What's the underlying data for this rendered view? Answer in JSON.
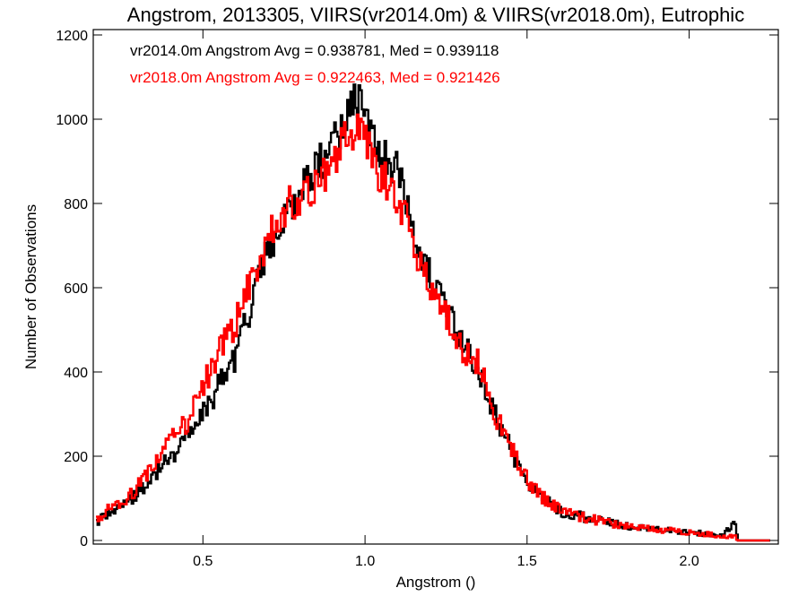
{
  "chart_data": {
    "type": "histogram-step",
    "title": "Angstrom, 2013305, VIIRS(vr2014.0m) & VIIRS(vr2018.0m), Eutrophic",
    "xlabel": "Angstrom ()",
    "ylabel": "Number of Observations",
    "xlim": [
      0.17,
      2.25
    ],
    "ylim": [
      0,
      1200
    ],
    "xticks": [
      0.5,
      1.0,
      1.5,
      2.0
    ],
    "xtick_labels": [
      "0.5",
      "1.0",
      "1.5",
      "2.0"
    ],
    "yticks": [
      0,
      200,
      400,
      600,
      800,
      1000,
      1200
    ],
    "ytick_labels": [
      "0",
      "200",
      "400",
      "600",
      "800",
      "1000",
      "1200"
    ],
    "grid": false,
    "annotations": [
      {
        "text": "vr2014.0m Angstrom Avg = 0.938781, Med = 0.939118",
        "color": "#000000"
      },
      {
        "text": "vr2018.0m Angstrom Avg = 0.922463, Med = 0.921426",
        "color": "#ff0000"
      }
    ],
    "series": [
      {
        "color": "#000000",
        "x": [
          0.17,
          0.2,
          0.25,
          0.3,
          0.35,
          0.4,
          0.45,
          0.5,
          0.55,
          0.6,
          0.65,
          0.7,
          0.75,
          0.8,
          0.85,
          0.9,
          0.95,
          0.98,
          1.0,
          1.05,
          1.1,
          1.15,
          1.2,
          1.25,
          1.3,
          1.35,
          1.4,
          1.45,
          1.5,
          1.55,
          1.6,
          1.7,
          1.8,
          1.9,
          2.0,
          2.05,
          2.1,
          2.14,
          2.145,
          2.15,
          2.25
        ],
        "y": [
          45,
          65,
          80,
          115,
          160,
          200,
          250,
          300,
          370,
          440,
          570,
          690,
          770,
          830,
          880,
          955,
          1010,
          1060,
          990,
          920,
          880,
          740,
          620,
          540,
          470,
          400,
          300,
          210,
          140,
          100,
          70,
          50,
          35,
          25,
          20,
          15,
          10,
          45,
          10,
          0,
          0
        ]
      },
      {
        "color": "#ff0000",
        "x": [
          0.17,
          0.2,
          0.25,
          0.3,
          0.35,
          0.4,
          0.45,
          0.5,
          0.55,
          0.6,
          0.65,
          0.7,
          0.75,
          0.8,
          0.85,
          0.9,
          0.95,
          0.98,
          1.0,
          1.05,
          1.1,
          1.15,
          1.2,
          1.25,
          1.3,
          1.35,
          1.4,
          1.45,
          1.5,
          1.55,
          1.6,
          1.7,
          1.8,
          1.9,
          2.0,
          2.05,
          2.1,
          2.14,
          2.145,
          2.15,
          2.25
        ],
        "y": [
          50,
          70,
          85,
          130,
          190,
          250,
          280,
          370,
          450,
          520,
          630,
          720,
          790,
          820,
          850,
          900,
          970,
          990,
          940,
          860,
          820,
          700,
          600,
          530,
          450,
          420,
          300,
          220,
          140,
          100,
          70,
          50,
          35,
          25,
          20,
          15,
          10,
          10,
          5,
          0,
          0
        ]
      }
    ]
  }
}
